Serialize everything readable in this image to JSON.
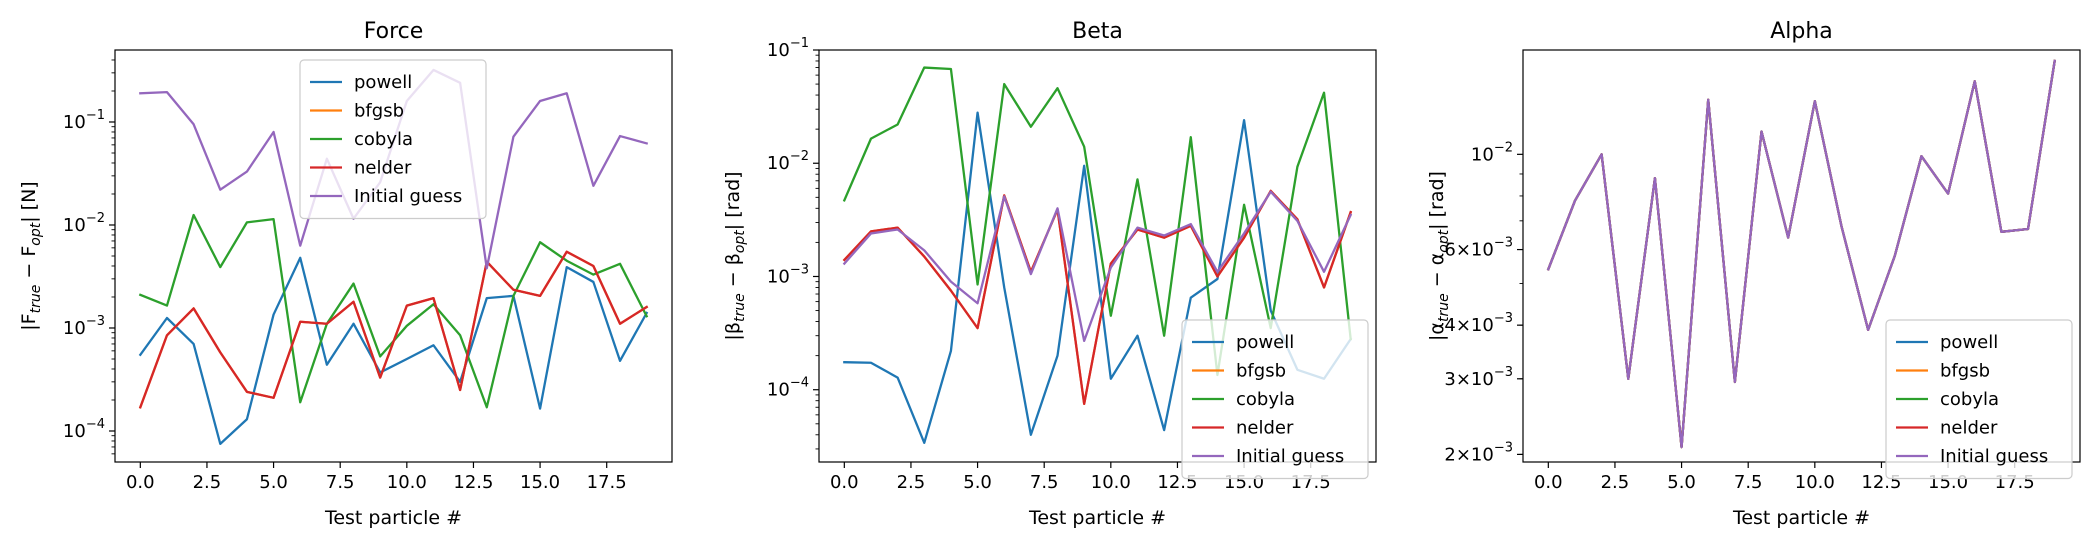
{
  "chart_data": [
    {
      "type": "line",
      "title": "Force",
      "xlabel": "Test particle #",
      "ylabel": "|F_true − F_opt| [N]",
      "ylabel_parts": [
        {
          "t": "|F"
        },
        {
          "t": "true",
          "sub": true
        },
        {
          "t": " − F"
        },
        {
          "t": "opt",
          "sub": true
        },
        {
          "t": "| [N]"
        }
      ],
      "yscale": "log",
      "xlim": [
        -0.95,
        19.95
      ],
      "ylim": [
        5e-05,
        0.5
      ],
      "x_ticks": [
        0,
        2.5,
        5,
        7.5,
        10,
        12.5,
        15,
        17.5
      ],
      "x_tick_labels": [
        "0.0",
        "2.5",
        "5.0",
        "7.5",
        "10.0",
        "12.5",
        "15.0",
        "17.5"
      ],
      "y_ticks": [
        {
          "value": 0.0001,
          "base": "10",
          "exp": "−4"
        },
        {
          "value": 0.001,
          "base": "10",
          "exp": "−3"
        },
        {
          "value": 0.01,
          "base": "10",
          "exp": "−2"
        },
        {
          "value": 0.1,
          "base": "10",
          "exp": "−1"
        }
      ],
      "legend_position": "upper-center",
      "x": [
        0,
        1,
        2,
        3,
        4,
        5,
        6,
        7,
        8,
        9,
        10,
        11,
        12,
        13,
        14,
        15,
        16,
        17,
        18,
        19
      ],
      "series": [
        {
          "name": "powell",
          "color": "#1f77b4",
          "values": [
            0.00055,
            0.00125,
            0.0007,
            7.5e-05,
            0.00013,
            0.00135,
            0.0048,
            0.00044,
            0.0011,
            0.00037,
            0.0005,
            0.00068,
            0.0003,
            0.00195,
            0.00205,
            0.000165,
            0.0039,
            0.0028,
            0.00048,
            0.0014
          ]
        },
        {
          "name": "bfgsb",
          "color": "#ff7f0e",
          "values": [
            0.00017,
            0.00085,
            0.00155,
            0.00058,
            0.00024,
            0.00021,
            0.00115,
            0.0011,
            0.0018,
            0.00033,
            0.00165,
            0.00195,
            0.00025,
            0.0044,
            0.00235,
            0.00205,
            0.0055,
            0.004,
            0.0011,
            0.0016
          ]
        },
        {
          "name": "cobyla",
          "color": "#2ca02c",
          "values": [
            0.0021,
            0.00165,
            0.0125,
            0.0039,
            0.0106,
            0.0114,
            0.00019,
            0.0011,
            0.0027,
            0.00053,
            0.00105,
            0.0017,
            0.00085,
            0.00017,
            0.00205,
            0.0068,
            0.0045,
            0.0033,
            0.0042,
            0.0013
          ]
        },
        {
          "name": "nelder",
          "color": "#d62728",
          "values": [
            0.00017,
            0.00085,
            0.00155,
            0.00058,
            0.00024,
            0.00021,
            0.00115,
            0.0011,
            0.0018,
            0.00033,
            0.00165,
            0.00195,
            0.00025,
            0.0044,
            0.00235,
            0.00205,
            0.0055,
            0.004,
            0.0011,
            0.0016
          ]
        },
        {
          "name": "Initial guess",
          "color": "#9467bd",
          "values": [
            0.19,
            0.195,
            0.095,
            0.022,
            0.033,
            0.08,
            0.0063,
            0.044,
            0.0115,
            0.026,
            0.16,
            0.32,
            0.24,
            0.0038,
            0.072,
            0.16,
            0.19,
            0.024,
            0.073,
            0.062
          ]
        }
      ]
    },
    {
      "type": "line",
      "title": "Beta",
      "xlabel": "Test particle #",
      "ylabel": "|β_true − β_opt| [rad]",
      "ylabel_parts": [
        {
          "t": "|β"
        },
        {
          "t": "true",
          "sub": true
        },
        {
          "t": " − β"
        },
        {
          "t": "opt",
          "sub": true
        },
        {
          "t": "| [rad]"
        }
      ],
      "yscale": "log",
      "xlim": [
        -0.95,
        19.95
      ],
      "ylim": [
        2.3e-05,
        0.1
      ],
      "x_ticks": [
        0,
        2.5,
        5,
        7.5,
        10,
        12.5,
        15,
        17.5
      ],
      "x_tick_labels": [
        "0.0",
        "2.5",
        "5.0",
        "7.5",
        "10.0",
        "12.5",
        "15.0",
        "17.5"
      ],
      "y_ticks": [
        {
          "value": 0.0001,
          "base": "10",
          "exp": "−4"
        },
        {
          "value": 0.001,
          "base": "10",
          "exp": "−3"
        },
        {
          "value": 0.01,
          "base": "10",
          "exp": "−2"
        },
        {
          "value": 0.1,
          "base": "10",
          "exp": "−1"
        }
      ],
      "legend_position": "lower-right",
      "x": [
        0,
        1,
        2,
        3,
        4,
        5,
        6,
        7,
        8,
        9,
        10,
        11,
        12,
        13,
        14,
        15,
        16,
        17,
        18,
        19
      ],
      "series": [
        {
          "name": "powell",
          "color": "#1f77b4",
          "values": [
            0.000175,
            0.000173,
            0.000128,
            3.4e-05,
            0.00022,
            0.028,
            0.0008,
            4e-05,
            0.0002,
            0.0095,
            0.000125,
            0.0003,
            4.4e-05,
            0.00065,
            0.00095,
            0.024,
            0.0005,
            0.00015,
            0.000125,
            0.00028
          ]
        },
        {
          "name": "bfgsb",
          "color": "#ff7f0e",
          "values": [
            0.0014,
            0.0025,
            0.0027,
            0.0015,
            0.00075,
            0.00035,
            0.0052,
            0.0011,
            0.0039,
            7.5e-05,
            0.0013,
            0.0026,
            0.0022,
            0.0028,
            0.001,
            0.0022,
            0.0057,
            0.0032,
            0.0008,
            0.0037
          ]
        },
        {
          "name": "cobyla",
          "color": "#2ca02c",
          "values": [
            0.0047,
            0.0165,
            0.022,
            0.07,
            0.068,
            0.00085,
            0.05,
            0.021,
            0.046,
            0.014,
            0.00045,
            0.0072,
            0.0003,
            0.017,
            0.000135,
            0.0043,
            0.00035,
            0.0093,
            0.042,
            0.00028
          ]
        },
        {
          "name": "nelder",
          "color": "#d62728",
          "values": [
            0.0014,
            0.0025,
            0.0027,
            0.0015,
            0.00075,
            0.00035,
            0.0052,
            0.0011,
            0.0039,
            7.5e-05,
            0.0013,
            0.0026,
            0.0022,
            0.0028,
            0.001,
            0.0022,
            0.0057,
            0.0032,
            0.0008,
            0.0037
          ]
        },
        {
          "name": "Initial guess",
          "color": "#9467bd",
          "values": [
            0.0013,
            0.0024,
            0.0026,
            0.0017,
            0.0009,
            0.00058,
            0.0051,
            0.00105,
            0.004,
            0.00027,
            0.0012,
            0.0027,
            0.0023,
            0.0029,
            0.0011,
            0.0024,
            0.0056,
            0.0031,
            0.0011,
            0.0035
          ]
        }
      ]
    },
    {
      "type": "line",
      "title": "Alpha",
      "xlabel": "Test particle #",
      "ylabel": "|α_true − α_opt| [rad]",
      "ylabel_parts": [
        {
          "t": "|α"
        },
        {
          "t": "true",
          "sub": true
        },
        {
          "t": " − α"
        },
        {
          "t": "opt",
          "sub": true
        },
        {
          "t": "| [rad]"
        }
      ],
      "yscale": "log",
      "xlim": [
        -0.95,
        19.95
      ],
      "ylim": [
        0.00192,
        0.0175
      ],
      "x_ticks": [
        0,
        2.5,
        5,
        7.5,
        10,
        12.5,
        15,
        17.5
      ],
      "x_tick_labels": [
        "0.0",
        "2.5",
        "5.0",
        "7.5",
        "10.0",
        "12.5",
        "15.0",
        "17.5"
      ],
      "y_ticks": [
        {
          "value": 0.002,
          "base": "2×10",
          "exp": "−3"
        },
        {
          "value": 0.003,
          "base": "3×10",
          "exp": "−3"
        },
        {
          "value": 0.004,
          "base": "4×10",
          "exp": "−3"
        },
        {
          "value": 0.006,
          "base": "6×10",
          "exp": "−3"
        },
        {
          "value": 0.01,
          "base": "10",
          "exp": "−2"
        }
      ],
      "legend_position": "lower-right",
      "x": [
        0,
        1,
        2,
        3,
        4,
        5,
        6,
        7,
        8,
        9,
        10,
        11,
        12,
        13,
        14,
        15,
        16,
        17,
        18,
        19
      ],
      "series": [
        {
          "name": "powell",
          "color": "#1f77b4",
          "values": [
            0.0054,
            0.0078,
            0.01,
            0.003,
            0.0088,
            0.00208,
            0.0134,
            0.00295,
            0.0113,
            0.0064,
            0.0133,
            0.0068,
            0.0039,
            0.0058,
            0.0099,
            0.0081,
            0.0148,
            0.0066,
            0.0067,
            0.0165
          ]
        },
        {
          "name": "bfgsb",
          "color": "#ff7f0e",
          "values": [
            0.0054,
            0.0078,
            0.01,
            0.003,
            0.0088,
            0.00208,
            0.0134,
            0.00295,
            0.0113,
            0.0064,
            0.0133,
            0.0068,
            0.0039,
            0.0058,
            0.0099,
            0.0081,
            0.0148,
            0.0066,
            0.0067,
            0.0165
          ]
        },
        {
          "name": "cobyla",
          "color": "#2ca02c",
          "values": [
            0.0054,
            0.0078,
            0.01,
            0.003,
            0.0088,
            0.00208,
            0.0134,
            0.00295,
            0.0113,
            0.0064,
            0.0133,
            0.0068,
            0.0039,
            0.0058,
            0.0099,
            0.0081,
            0.0148,
            0.0066,
            0.0067,
            0.0165
          ]
        },
        {
          "name": "nelder",
          "color": "#d62728",
          "values": [
            0.0054,
            0.0078,
            0.01,
            0.003,
            0.0088,
            0.00208,
            0.0134,
            0.00295,
            0.0113,
            0.0064,
            0.0133,
            0.0068,
            0.0039,
            0.0058,
            0.0099,
            0.0081,
            0.0148,
            0.0066,
            0.0067,
            0.0165
          ]
        },
        {
          "name": "Initial guess",
          "color": "#9467bd",
          "values": [
            0.0054,
            0.0078,
            0.01,
            0.003,
            0.0088,
            0.00208,
            0.0134,
            0.00295,
            0.0113,
            0.0064,
            0.0133,
            0.0068,
            0.0039,
            0.0058,
            0.0099,
            0.0081,
            0.0148,
            0.0066,
            0.0067,
            0.0165
          ]
        }
      ]
    }
  ]
}
